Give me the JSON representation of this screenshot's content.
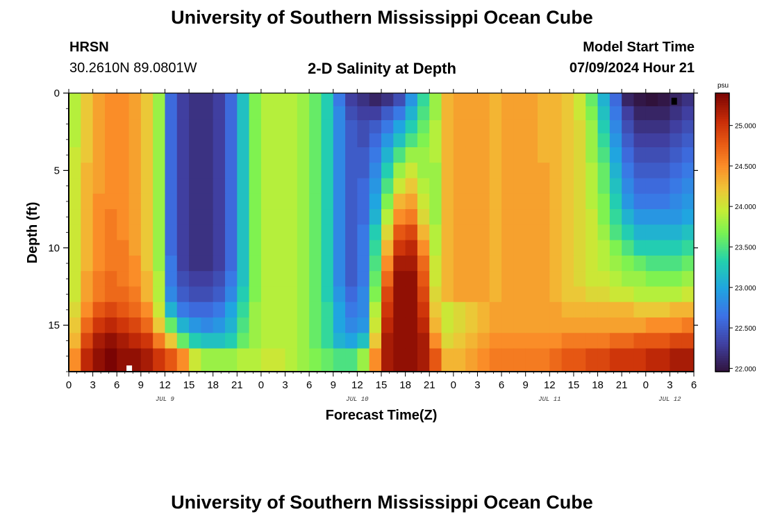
{
  "page": {
    "title_top": "University of Southern Mississippi Ocean Cube",
    "title_bottom": "University of Southern Mississippi Ocean Cube",
    "station_name": "HRSN",
    "station_coords": "30.2610N  89.0801W",
    "chart_heading": "2-D Salinity at Depth",
    "model_start_label": "Model Start Time",
    "model_start_value": "07/09/2024 Hour 21"
  },
  "chart_data": {
    "type": "heatmap",
    "title": "2-D Salinity at Depth",
    "xlabel": "Forecast Time(Z)",
    "ylabel": "Depth (ft)",
    "x_tick_labels": [
      "0",
      "3",
      "6",
      "9",
      "12",
      "15",
      "18",
      "21",
      "0",
      "3",
      "6",
      "9",
      "12",
      "15",
      "18",
      "21",
      "0",
      "3",
      "6",
      "9",
      "12",
      "15",
      "18",
      "21",
      "0",
      "3",
      "6"
    ],
    "x_date_labels": [
      {
        "label": "JUL 9",
        "hour": 12
      },
      {
        "label": "JUL 10",
        "hour": 36
      },
      {
        "label": "JUL 11",
        "hour": 60
      },
      {
        "label": "JUL 12",
        "hour": 75
      }
    ],
    "x_range_hours": [
      0,
      78
    ],
    "y_ticks": [
      0,
      5,
      10,
      15
    ],
    "y_range_ft": [
      0,
      18
    ],
    "colorbar": {
      "unit": "psu",
      "min": 21.96,
      "max": 25.4,
      "tick_labels": [
        "22.000",
        "22.500",
        "23.000",
        "23.500",
        "24.000",
        "24.500",
        "25.000"
      ],
      "tick_values": [
        22.0,
        22.5,
        23.0,
        23.5,
        24.0,
        24.5,
        25.0
      ]
    },
    "depth_rows_ft": [
      0.4,
      1.3,
      2.2,
      3.0,
      4.0,
      5.0,
      6.0,
      7.0,
      8.0,
      9.0,
      10.0,
      11.0,
      12.0,
      13.0,
      14.0,
      15.0,
      16.0,
      17.0
    ],
    "time_columns_hours": [
      0,
      1.5,
      3,
      4.5,
      6,
      7.5,
      9,
      10.5,
      12,
      13.5,
      15,
      16.5,
      18,
      19.5,
      21,
      22.5,
      24,
      25.5,
      27,
      28.5,
      30,
      31.5,
      33,
      34.5,
      36,
      37.5,
      39,
      40.5,
      42,
      43.5,
      45,
      46.5,
      48,
      49.5,
      51,
      52.5,
      54,
      55.5,
      57,
      58.5,
      60,
      61.5,
      63,
      64.5,
      66,
      67.5,
      69,
      70.5,
      72,
      73.5,
      75,
      76.5
    ],
    "salinity_psu": [
      [
        23.9,
        24.2,
        24.4,
        24.5,
        24.5,
        24.4,
        24.2,
        23.8,
        22.6,
        22.3,
        22.2,
        22.2,
        22.3,
        22.6,
        23.2,
        23.7,
        23.9,
        23.9,
        23.9,
        23.8,
        23.6,
        23.3,
        22.7,
        22.3,
        22.2,
        22.1,
        22.2,
        22.4,
        22.9,
        23.4,
        23.8,
        24.3,
        24.4,
        24.4,
        24.4,
        24.3,
        24.4,
        24.4,
        24.4,
        24.3,
        24.3,
        24.2,
        24.0,
        23.6,
        23.1,
        22.6,
        22.1,
        22.0,
        21.96,
        22.0,
        22.1,
        22.2
      ],
      [
        23.9,
        24.2,
        24.4,
        24.5,
        24.5,
        24.4,
        24.2,
        23.8,
        22.6,
        22.3,
        22.2,
        22.2,
        22.3,
        22.6,
        23.2,
        23.7,
        23.9,
        23.9,
        23.9,
        23.8,
        23.6,
        23.3,
        22.8,
        22.4,
        22.3,
        22.3,
        22.5,
        22.7,
        23.1,
        23.5,
        23.8,
        24.3,
        24.4,
        24.4,
        24.4,
        24.3,
        24.4,
        24.4,
        24.4,
        24.3,
        24.3,
        24.2,
        24.0,
        23.7,
        23.2,
        22.7,
        22.3,
        22.1,
        22.1,
        22.1,
        22.2,
        22.3
      ],
      [
        23.9,
        24.2,
        24.4,
        24.5,
        24.5,
        24.4,
        24.2,
        23.8,
        22.6,
        22.3,
        22.2,
        22.2,
        22.3,
        22.6,
        23.2,
        23.7,
        23.9,
        23.9,
        23.9,
        23.8,
        23.6,
        23.3,
        22.8,
        22.5,
        22.4,
        22.5,
        22.7,
        23.0,
        23.3,
        23.6,
        23.9,
        24.3,
        24.4,
        24.4,
        24.4,
        24.3,
        24.4,
        24.4,
        24.4,
        24.3,
        24.3,
        24.2,
        24.1,
        23.8,
        23.3,
        22.8,
        22.4,
        22.2,
        22.2,
        22.2,
        22.3,
        22.4
      ],
      [
        23.9,
        24.2,
        24.4,
        24.5,
        24.5,
        24.4,
        24.2,
        23.8,
        22.6,
        22.3,
        22.2,
        22.2,
        22.3,
        22.6,
        23.2,
        23.7,
        23.9,
        23.9,
        23.9,
        23.8,
        23.6,
        23.3,
        22.8,
        22.5,
        22.4,
        22.6,
        22.9,
        23.2,
        23.5,
        23.7,
        23.9,
        24.3,
        24.4,
        24.4,
        24.4,
        24.3,
        24.4,
        24.4,
        24.4,
        24.3,
        24.3,
        24.2,
        24.1,
        23.8,
        23.4,
        22.9,
        22.5,
        22.3,
        22.3,
        22.3,
        22.4,
        22.5
      ],
      [
        24.0,
        24.2,
        24.4,
        24.5,
        24.5,
        24.4,
        24.2,
        23.8,
        22.6,
        22.3,
        22.2,
        22.2,
        22.3,
        22.6,
        23.2,
        23.7,
        23.9,
        23.9,
        23.9,
        23.8,
        23.6,
        23.3,
        22.8,
        22.5,
        22.5,
        22.7,
        23.1,
        23.5,
        23.8,
        23.8,
        23.9,
        24.3,
        24.4,
        24.4,
        24.4,
        24.3,
        24.4,
        24.4,
        24.4,
        24.3,
        24.3,
        24.2,
        24.1,
        23.8,
        23.5,
        23.0,
        22.6,
        22.4,
        22.4,
        22.4,
        22.5,
        22.6
      ],
      [
        24.0,
        24.3,
        24.4,
        24.5,
        24.5,
        24.4,
        24.2,
        23.8,
        22.6,
        22.3,
        22.2,
        22.2,
        22.3,
        22.6,
        23.2,
        23.7,
        23.9,
        23.9,
        23.9,
        23.8,
        23.6,
        23.3,
        22.8,
        22.5,
        22.5,
        22.8,
        23.3,
        23.8,
        24.0,
        23.8,
        23.8,
        24.3,
        24.4,
        24.4,
        24.4,
        24.3,
        24.4,
        24.4,
        24.4,
        24.4,
        24.3,
        24.2,
        24.1,
        23.9,
        23.6,
        23.1,
        22.7,
        22.5,
        22.5,
        22.5,
        22.6,
        22.7
      ],
      [
        24.0,
        24.3,
        24.4,
        24.5,
        24.5,
        24.4,
        24.2,
        23.8,
        22.6,
        22.3,
        22.2,
        22.2,
        22.3,
        22.6,
        23.2,
        23.7,
        23.9,
        23.9,
        23.9,
        23.8,
        23.6,
        23.3,
        22.8,
        22.5,
        22.6,
        22.9,
        23.5,
        24.0,
        24.2,
        23.9,
        23.8,
        24.3,
        24.4,
        24.4,
        24.4,
        24.3,
        24.4,
        24.4,
        24.4,
        24.4,
        24.3,
        24.2,
        24.1,
        23.9,
        23.6,
        23.2,
        22.8,
        22.6,
        22.6,
        22.6,
        22.7,
        22.8
      ],
      [
        24.0,
        24.3,
        24.5,
        24.5,
        24.5,
        24.4,
        24.2,
        23.8,
        22.6,
        22.3,
        22.2,
        22.2,
        22.3,
        22.6,
        23.2,
        23.7,
        23.9,
        23.9,
        23.9,
        23.8,
        23.6,
        23.3,
        22.8,
        22.5,
        22.6,
        23.0,
        23.7,
        24.3,
        24.4,
        24.0,
        23.8,
        24.3,
        24.4,
        24.4,
        24.4,
        24.3,
        24.4,
        24.4,
        24.4,
        24.4,
        24.3,
        24.2,
        24.1,
        23.9,
        23.7,
        23.3,
        22.9,
        22.7,
        22.7,
        22.7,
        22.8,
        22.9
      ],
      [
        24.0,
        24.3,
        24.5,
        24.6,
        24.5,
        24.4,
        24.2,
        23.8,
        22.6,
        22.3,
        22.2,
        22.2,
        22.3,
        22.6,
        23.2,
        23.7,
        23.9,
        23.9,
        23.9,
        23.8,
        23.6,
        23.3,
        22.8,
        22.5,
        22.6,
        23.1,
        23.9,
        24.5,
        24.6,
        24.1,
        23.8,
        24.3,
        24.4,
        24.4,
        24.4,
        24.3,
        24.4,
        24.4,
        24.4,
        24.4,
        24.3,
        24.2,
        24.1,
        24.0,
        23.7,
        23.4,
        23.1,
        22.9,
        22.9,
        22.9,
        22.9,
        23.0
      ],
      [
        24.0,
        24.3,
        24.5,
        24.6,
        24.5,
        24.4,
        24.2,
        23.8,
        22.6,
        22.3,
        22.2,
        22.2,
        22.3,
        22.6,
        23.2,
        23.7,
        23.9,
        23.9,
        23.9,
        23.8,
        23.6,
        23.3,
        22.8,
        22.5,
        22.7,
        23.3,
        24.1,
        24.8,
        24.9,
        24.3,
        23.9,
        24.3,
        24.4,
        24.4,
        24.4,
        24.3,
        24.4,
        24.4,
        24.4,
        24.4,
        24.3,
        24.2,
        24.1,
        24.0,
        23.8,
        23.5,
        23.3,
        23.1,
        23.1,
        23.1,
        23.1,
        23.2
      ],
      [
        24.0,
        24.3,
        24.5,
        24.6,
        24.6,
        24.4,
        24.2,
        23.8,
        22.6,
        22.3,
        22.2,
        22.2,
        22.3,
        22.6,
        23.2,
        23.7,
        23.9,
        23.9,
        23.9,
        23.8,
        23.6,
        23.3,
        22.8,
        22.5,
        22.7,
        23.4,
        24.3,
        25.0,
        25.1,
        24.5,
        23.9,
        24.3,
        24.4,
        24.4,
        24.4,
        24.3,
        24.4,
        24.4,
        24.4,
        24.4,
        24.3,
        24.2,
        24.1,
        24.0,
        23.9,
        23.7,
        23.5,
        23.3,
        23.3,
        23.3,
        23.3,
        23.4
      ],
      [
        24.0,
        24.3,
        24.5,
        24.6,
        24.6,
        24.5,
        24.2,
        23.8,
        22.7,
        22.3,
        22.2,
        22.2,
        22.3,
        22.6,
        23.2,
        23.7,
        23.9,
        23.9,
        23.9,
        23.8,
        23.6,
        23.3,
        22.8,
        22.5,
        22.7,
        23.5,
        24.5,
        25.2,
        25.2,
        24.7,
        24.0,
        24.3,
        24.4,
        24.4,
        24.4,
        24.3,
        24.4,
        24.4,
        24.4,
        24.4,
        24.3,
        24.2,
        24.1,
        24.0,
        23.9,
        23.8,
        23.7,
        23.6,
        23.5,
        23.5,
        23.5,
        23.6
      ],
      [
        24.0,
        24.4,
        24.6,
        24.7,
        24.6,
        24.5,
        24.3,
        23.9,
        22.7,
        22.4,
        22.3,
        22.3,
        22.4,
        22.7,
        23.2,
        23.7,
        23.9,
        23.9,
        23.9,
        23.8,
        23.6,
        23.3,
        22.8,
        22.5,
        22.7,
        23.6,
        24.7,
        25.3,
        25.3,
        24.8,
        24.0,
        24.3,
        24.4,
        24.4,
        24.4,
        24.3,
        24.4,
        24.4,
        24.4,
        24.4,
        24.3,
        24.2,
        24.1,
        24.0,
        24.0,
        23.9,
        23.8,
        23.8,
        23.7,
        23.7,
        23.7,
        23.8
      ],
      [
        24.0,
        24.4,
        24.6,
        24.7,
        24.7,
        24.6,
        24.3,
        23.9,
        22.8,
        22.5,
        22.4,
        22.4,
        22.5,
        22.8,
        23.3,
        23.7,
        23.9,
        23.9,
        23.9,
        23.8,
        23.6,
        23.3,
        22.9,
        22.6,
        22.8,
        23.7,
        24.9,
        25.3,
        25.3,
        24.9,
        24.1,
        24.3,
        24.4,
        24.4,
        24.4,
        24.3,
        24.4,
        24.4,
        24.4,
        24.4,
        24.3,
        24.2,
        24.2,
        24.1,
        24.1,
        24.0,
        24.0,
        23.9,
        23.9,
        23.9,
        23.9,
        24.0
      ],
      [
        24.1,
        24.5,
        24.8,
        24.9,
        24.8,
        24.7,
        24.5,
        24.0,
        23.1,
        22.7,
        22.6,
        22.6,
        22.7,
        23.0,
        23.4,
        23.8,
        23.9,
        23.9,
        23.9,
        23.8,
        23.6,
        23.4,
        23.0,
        22.7,
        22.8,
        23.9,
        25.0,
        25.3,
        25.3,
        25.0,
        24.2,
        24.0,
        24.1,
        24.2,
        24.3,
        24.4,
        24.4,
        24.4,
        24.4,
        24.4,
        24.4,
        24.3,
        24.3,
        24.3,
        24.3,
        24.3,
        24.3,
        24.2,
        24.2,
        24.2,
        24.3,
        24.3
      ],
      [
        24.2,
        24.7,
        25.0,
        25.1,
        25.0,
        24.9,
        24.7,
        24.2,
        23.6,
        23.1,
        22.9,
        22.8,
        22.9,
        23.1,
        23.5,
        23.8,
        23.9,
        23.9,
        23.9,
        23.8,
        23.6,
        23.4,
        23.0,
        22.8,
        22.9,
        24.0,
        25.1,
        25.3,
        25.3,
        25.1,
        24.3,
        24.0,
        24.1,
        24.2,
        24.3,
        24.4,
        24.4,
        24.4,
        24.4,
        24.4,
        24.4,
        24.4,
        24.4,
        24.4,
        24.4,
        24.4,
        24.4,
        24.4,
        24.5,
        24.5,
        24.5,
        24.6
      ],
      [
        24.3,
        24.9,
        25.2,
        25.3,
        25.2,
        25.1,
        25.0,
        24.6,
        24.2,
        23.6,
        23.3,
        23.2,
        23.2,
        23.3,
        23.6,
        23.8,
        23.9,
        23.9,
        23.9,
        23.8,
        23.6,
        23.4,
        23.1,
        23.0,
        23.2,
        24.2,
        25.2,
        25.3,
        25.3,
        25.2,
        24.5,
        24.1,
        24.2,
        24.3,
        24.4,
        24.5,
        24.5,
        24.5,
        24.5,
        24.5,
        24.5,
        24.6,
        24.6,
        24.6,
        24.6,
        24.7,
        24.7,
        24.8,
        24.8,
        24.8,
        24.9,
        24.9
      ],
      [
        24.5,
        25.1,
        25.3,
        25.4,
        25.3,
        25.3,
        25.2,
        25.0,
        24.8,
        24.5,
        24.0,
        23.8,
        23.8,
        23.8,
        23.9,
        23.9,
        24.0,
        24.0,
        23.9,
        23.8,
        23.7,
        23.6,
        23.5,
        23.5,
        23.8,
        24.5,
        25.2,
        25.3,
        25.3,
        25.2,
        24.8,
        24.3,
        24.3,
        24.4,
        24.5,
        24.6,
        24.6,
        24.6,
        24.6,
        24.6,
        24.7,
        24.8,
        24.8,
        24.9,
        24.9,
        25.0,
        25.0,
        25.0,
        25.1,
        25.1,
        25.2,
        25.2
      ]
    ],
    "missing_cells": [
      {
        "time_hour": 7.2,
        "depth_ft": 17.6,
        "color": "#ffffff"
      },
      {
        "time_hour": 75.2,
        "depth_ft": 0.3,
        "color": "#000000"
      }
    ]
  }
}
